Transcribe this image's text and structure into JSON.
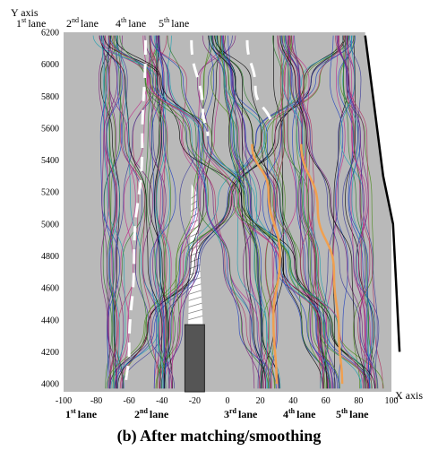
{
  "chart_data": {
    "type": "line",
    "ylabel": "Y axis",
    "xlabel": "X axis",
    "xlim": [
      -100,
      100
    ],
    "ylim": [
      3950,
      6200
    ],
    "x_ticks": [
      -100,
      -80,
      -60,
      -40,
      -20,
      0,
      20,
      40,
      60,
      80,
      100
    ],
    "y_ticks": [
      4000,
      4200,
      4400,
      4600,
      4800,
      5000,
      5200,
      5400,
      5600,
      5800,
      6000,
      6200
    ],
    "lane_labels_top": [
      {
        "num": "1",
        "sup": "st",
        "word": "lane"
      },
      {
        "num": "2",
        "sup": "nd",
        "word": "lane"
      },
      {
        "num": "4",
        "sup": "th",
        "word": "lane"
      },
      {
        "num": "5",
        "sup": "th",
        "word": "lane"
      }
    ],
    "lane_labels_bottom": [
      {
        "num": "1",
        "sup": "st",
        "word": "lane"
      },
      {
        "num": "2",
        "sup": "nd",
        "word": "lane"
      },
      {
        "num": "3",
        "sup": "rd",
        "word": "lane"
      },
      {
        "num": "4",
        "sup": "th",
        "word": "lane"
      },
      {
        "num": "5",
        "sup": "th",
        "word": "lane"
      }
    ],
    "caption": "(b)   After matching/smoothing",
    "background_color": "#b9b9b9",
    "trajectory_colors": [
      "#1f3fbf",
      "#2a7a2a",
      "#7a1f7a",
      "#000000",
      "#c02a8a",
      "#1a9fb0",
      "#3a3a9a",
      "#4a8a1a",
      "#b03060"
    ],
    "lane_marker_color": "#ffffff",
    "highlight_color": "#f0a050",
    "boundary_color": "#000000",
    "obstacle_color": "#555555",
    "lane_centers_bottom": [
      -70,
      -38,
      25,
      62,
      88
    ],
    "lane_centers_top": [
      -72,
      -45,
      -5,
      35,
      72
    ],
    "marking_lines": [
      {
        "name": "lane-divider-1-2",
        "points": [
          [
            -50,
            6150
          ],
          [
            -52,
            5500
          ],
          [
            -57,
            4800
          ],
          [
            -60,
            4200
          ],
          [
            -62,
            3980
          ]
        ]
      },
      {
        "name": "lane-divider-2-4",
        "points": [
          [
            -22,
            6150
          ],
          [
            -15,
            5700
          ],
          [
            -12,
            5550
          ]
        ]
      },
      {
        "name": "lane-divider-4-5",
        "points": [
          [
            12,
            6150
          ],
          [
            17,
            5850
          ],
          [
            27,
            5600
          ]
        ]
      }
    ],
    "highlight_lines": [
      {
        "name": "orange-path-1",
        "points": [
          [
            15,
            5500
          ],
          [
            25,
            5200
          ],
          [
            32,
            4800
          ],
          [
            28,
            4400
          ],
          [
            30,
            4000
          ]
        ]
      },
      {
        "name": "orange-path-2",
        "points": [
          [
            45,
            5500
          ],
          [
            55,
            5100
          ],
          [
            65,
            4700
          ],
          [
            68,
            4300
          ],
          [
            70,
            4000
          ]
        ]
      }
    ],
    "boundary_line": [
      [
        84,
        6180
      ],
      [
        90,
        5700
      ],
      [
        95,
        5300
      ],
      [
        101,
        5000
      ],
      [
        103,
        4600
      ],
      [
        105,
        4200
      ]
    ],
    "obstacle": {
      "x0": -26,
      "x1": -14,
      "y0": 3950,
      "y1": 4370
    },
    "merge_wedge": [
      [
        -24,
        4370
      ],
      [
        -15,
        4370
      ],
      [
        -19,
        5200
      ],
      [
        -22,
        5250
      ]
    ]
  }
}
